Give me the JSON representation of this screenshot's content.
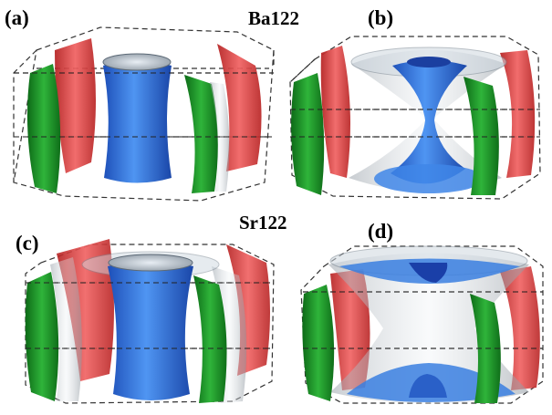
{
  "figure": {
    "rows": [
      {
        "title": "Ba122",
        "panels": [
          {
            "label": "(a)"
          },
          {
            "label": "(b)"
          }
        ]
      },
      {
        "title": "Sr122",
        "panels": [
          {
            "label": "(c)"
          },
          {
            "label": "(d)"
          }
        ]
      }
    ]
  },
  "colors": {
    "red_sheet": "#e23a3a",
    "green_sheet": "#1f9a2a",
    "blue_sheet": "#2a72e0",
    "translucent_sheet": "#c8d0d8",
    "box_edge": "#333333"
  }
}
